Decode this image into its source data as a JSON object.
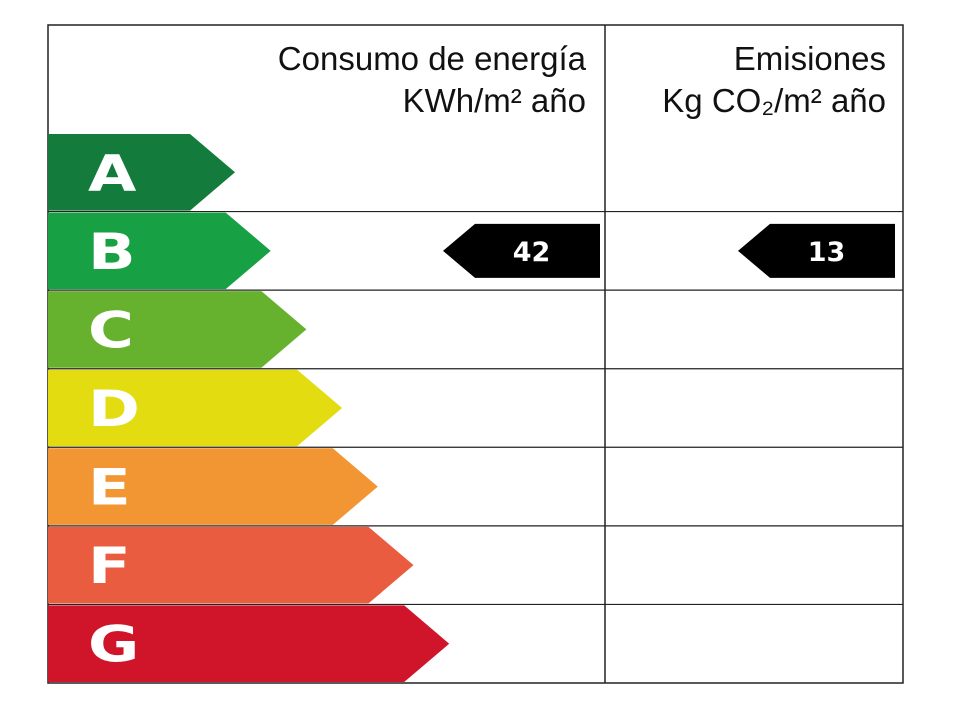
{
  "header": {
    "energy": {
      "title": "Consumo de energía",
      "unit": "KWh/m² año"
    },
    "emissions": {
      "title": "Emisiones",
      "unit": "Kg CO₂/m² año"
    }
  },
  "rows": [
    {
      "letter": "A",
      "color": "#137b3c"
    },
    {
      "letter": "B",
      "color": "#17a144",
      "energy": 42,
      "emissions": 13
    },
    {
      "letter": "C",
      "color": "#66b22f"
    },
    {
      "letter": "D",
      "color": "#e3dc10"
    },
    {
      "letter": "E",
      "color": "#f29633"
    },
    {
      "letter": "F",
      "color": "#e95c40"
    },
    {
      "letter": "G",
      "color": "#d0152a"
    }
  ]
}
